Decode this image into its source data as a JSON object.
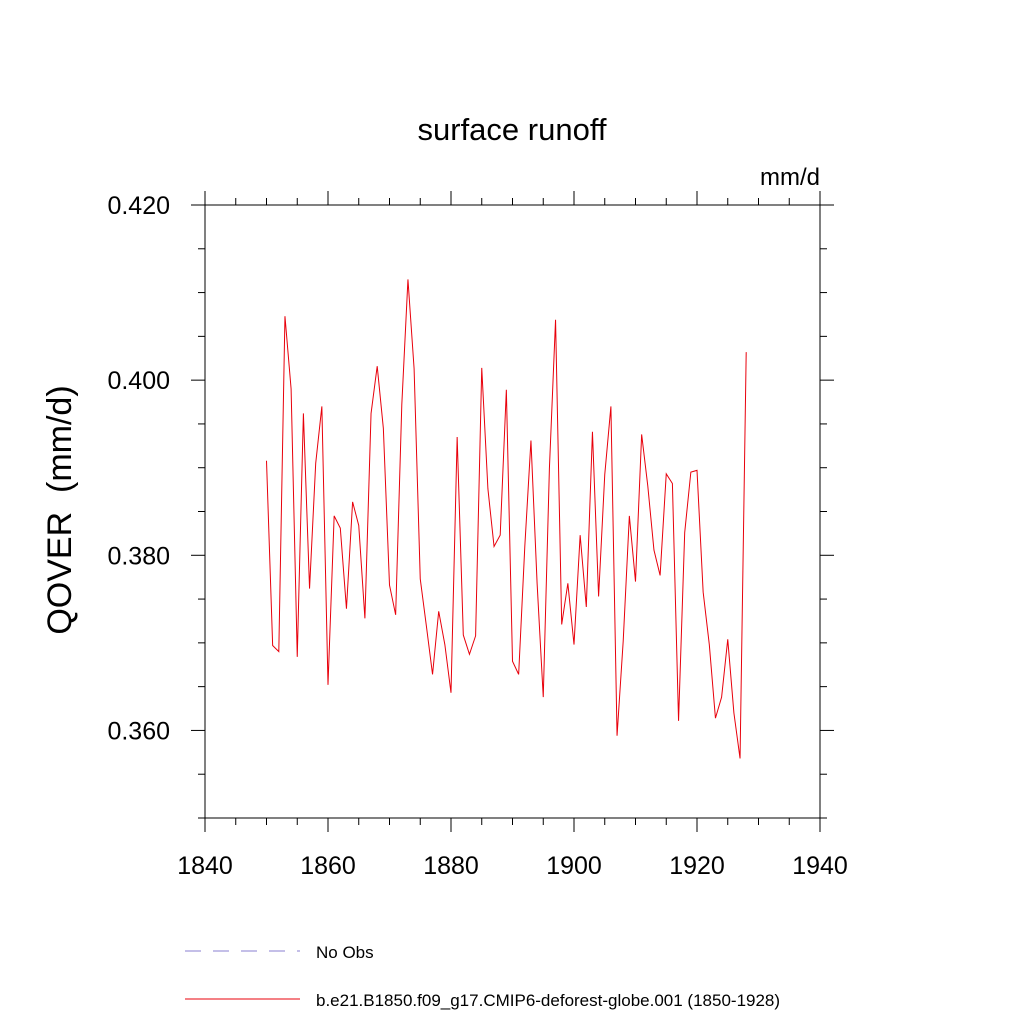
{
  "chart_data": {
    "type": "line",
    "title": "surface runoff",
    "units_label": "mm/d",
    "xlabel": "",
    "ylabel": "QOVER  (mm/d)",
    "xlim": [
      1840,
      1940
    ],
    "ylim": [
      0.35,
      0.42
    ],
    "x_ticks": [
      1840,
      1860,
      1880,
      1900,
      1920,
      1940
    ],
    "x_tick_labels": [
      "1840",
      "1860",
      "1880",
      "1900",
      "1920",
      "1940"
    ],
    "y_ticks": [
      0.36,
      0.38,
      0.4,
      0.42
    ],
    "y_tick_labels": [
      "0.360",
      "0.380",
      "0.400",
      "0.420"
    ],
    "grid": false,
    "legend_position": "bottom",
    "legend": [
      {
        "label": "No Obs",
        "color": "#8a7fd0",
        "style": "dashed"
      },
      {
        "label": "b.e21.B1850.f09_g17.CMIP6-deforest-globe.001 (1850-1928)",
        "color": "#e8000b",
        "style": "solid"
      }
    ],
    "series": [
      {
        "name": "b.e21.B1850.f09_g17.CMIP6-deforest-globe.001 (1850-1928)",
        "color": "#e8000b",
        "x": [
          1850,
          1851,
          1852,
          1853,
          1854,
          1855,
          1856,
          1857,
          1858,
          1859,
          1860,
          1861,
          1862,
          1863,
          1864,
          1865,
          1866,
          1867,
          1868,
          1869,
          1870,
          1871,
          1872,
          1873,
          1874,
          1875,
          1876,
          1877,
          1878,
          1879,
          1880,
          1881,
          1882,
          1883,
          1884,
          1885,
          1886,
          1887,
          1888,
          1889,
          1890,
          1891,
          1892,
          1893,
          1894,
          1895,
          1896,
          1897,
          1898,
          1899,
          1900,
          1901,
          1902,
          1903,
          1904,
          1905,
          1906,
          1907,
          1908,
          1909,
          1910,
          1911,
          1912,
          1913,
          1914,
          1915,
          1916,
          1917,
          1918,
          1919,
          1920,
          1921,
          1922,
          1923,
          1924,
          1925,
          1926,
          1927,
          1928
        ],
        "values": [
          0.3908,
          0.3697,
          0.369,
          0.4073,
          0.399,
          0.3684,
          0.3962,
          0.3762,
          0.3905,
          0.397,
          0.3652,
          0.3845,
          0.3831,
          0.3739,
          0.3861,
          0.3834,
          0.3728,
          0.3962,
          0.4016,
          0.3945,
          0.3766,
          0.3732,
          0.3972,
          0.4115,
          0.4013,
          0.3773,
          0.3719,
          0.3664,
          0.3736,
          0.3698,
          0.3643,
          0.3935,
          0.3709,
          0.3687,
          0.3708,
          0.4014,
          0.3876,
          0.381,
          0.3823,
          0.3989,
          0.3679,
          0.3664,
          0.381,
          0.3931,
          0.3768,
          0.3638,
          0.3899,
          0.4069,
          0.3721,
          0.3768,
          0.3698,
          0.3823,
          0.3741,
          0.3941,
          0.3753,
          0.3892,
          0.397,
          0.3594,
          0.3702,
          0.3845,
          0.377,
          0.3938,
          0.3879,
          0.3806,
          0.3777,
          0.3893,
          0.3882,
          0.3611,
          0.3826,
          0.3895,
          0.3897,
          0.3758,
          0.3698,
          0.3614,
          0.3638,
          0.3704,
          0.362,
          0.3568,
          0.4032
        ]
      }
    ]
  }
}
